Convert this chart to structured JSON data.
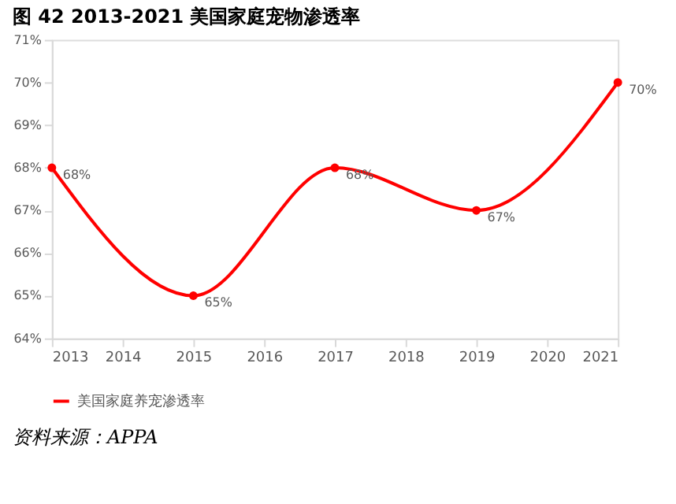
{
  "chart_data": {
    "type": "line",
    "title": "图 42 2013-2021 美国家庭宠物渗透率",
    "x": [
      2013,
      2015,
      2017,
      2019,
      2021
    ],
    "series": [
      {
        "name": "美国家庭养宠渗透率",
        "color": "#ff0000",
        "values": [
          68,
          65,
          68,
          67,
          70
        ],
        "value_labels": [
          "68%",
          "65%",
          "68%",
          "67%",
          "70%"
        ]
      }
    ],
    "xlim": [
      2013,
      2021
    ],
    "xticks": [
      2013,
      2014,
      2015,
      2016,
      2017,
      2018,
      2019,
      2020,
      2021
    ],
    "ylim": [
      64,
      71
    ],
    "yticks": [
      {
        "value": 64,
        "label": "64%"
      },
      {
        "value": 65,
        "label": "65%"
      },
      {
        "value": 66,
        "label": "66%"
      },
      {
        "value": 67,
        "label": "67%"
      },
      {
        "value": 68,
        "label": "68%"
      },
      {
        "value": 69,
        "label": "69%"
      },
      {
        "value": 70,
        "label": "70%"
      },
      {
        "value": 71,
        "label": "71%"
      }
    ],
    "grid": false,
    "legend": "bottom",
    "marker": "circle",
    "line_style": "solid",
    "annotations": [
      "资料来源：APPA"
    ]
  }
}
